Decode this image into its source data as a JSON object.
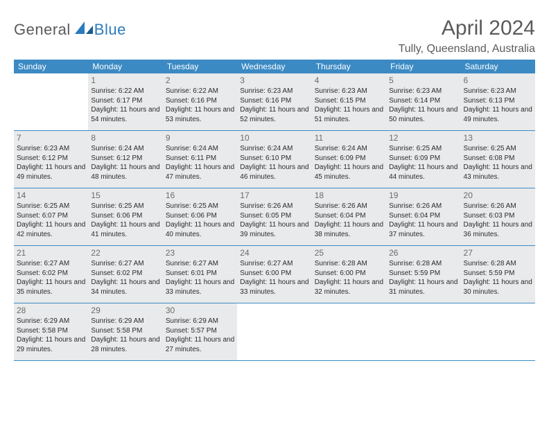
{
  "brand": {
    "part1": "General",
    "part2": "Blue"
  },
  "title": "April 2024",
  "location": "Tully, Queensland, Australia",
  "header_bg": "#3b8ac4",
  "cell_bg": "#e9eaeb",
  "border_color": "#3b8ac4",
  "weekdays": [
    "Sunday",
    "Monday",
    "Tuesday",
    "Wednesday",
    "Thursday",
    "Friday",
    "Saturday"
  ],
  "start_offset": 1,
  "days": [
    {
      "n": 1,
      "sr": "6:22 AM",
      "ss": "6:17 PM",
      "dlh": 11,
      "dlm": 54
    },
    {
      "n": 2,
      "sr": "6:22 AM",
      "ss": "6:16 PM",
      "dlh": 11,
      "dlm": 53
    },
    {
      "n": 3,
      "sr": "6:23 AM",
      "ss": "6:16 PM",
      "dlh": 11,
      "dlm": 52
    },
    {
      "n": 4,
      "sr": "6:23 AM",
      "ss": "6:15 PM",
      "dlh": 11,
      "dlm": 51
    },
    {
      "n": 5,
      "sr": "6:23 AM",
      "ss": "6:14 PM",
      "dlh": 11,
      "dlm": 50
    },
    {
      "n": 6,
      "sr": "6:23 AM",
      "ss": "6:13 PM",
      "dlh": 11,
      "dlm": 49
    },
    {
      "n": 7,
      "sr": "6:23 AM",
      "ss": "6:12 PM",
      "dlh": 11,
      "dlm": 49
    },
    {
      "n": 8,
      "sr": "6:24 AM",
      "ss": "6:12 PM",
      "dlh": 11,
      "dlm": 48
    },
    {
      "n": 9,
      "sr": "6:24 AM",
      "ss": "6:11 PM",
      "dlh": 11,
      "dlm": 47
    },
    {
      "n": 10,
      "sr": "6:24 AM",
      "ss": "6:10 PM",
      "dlh": 11,
      "dlm": 46
    },
    {
      "n": 11,
      "sr": "6:24 AM",
      "ss": "6:09 PM",
      "dlh": 11,
      "dlm": 45
    },
    {
      "n": 12,
      "sr": "6:25 AM",
      "ss": "6:09 PM",
      "dlh": 11,
      "dlm": 44
    },
    {
      "n": 13,
      "sr": "6:25 AM",
      "ss": "6:08 PM",
      "dlh": 11,
      "dlm": 43
    },
    {
      "n": 14,
      "sr": "6:25 AM",
      "ss": "6:07 PM",
      "dlh": 11,
      "dlm": 42
    },
    {
      "n": 15,
      "sr": "6:25 AM",
      "ss": "6:06 PM",
      "dlh": 11,
      "dlm": 41
    },
    {
      "n": 16,
      "sr": "6:25 AM",
      "ss": "6:06 PM",
      "dlh": 11,
      "dlm": 40
    },
    {
      "n": 17,
      "sr": "6:26 AM",
      "ss": "6:05 PM",
      "dlh": 11,
      "dlm": 39
    },
    {
      "n": 18,
      "sr": "6:26 AM",
      "ss": "6:04 PM",
      "dlh": 11,
      "dlm": 38
    },
    {
      "n": 19,
      "sr": "6:26 AM",
      "ss": "6:04 PM",
      "dlh": 11,
      "dlm": 37
    },
    {
      "n": 20,
      "sr": "6:26 AM",
      "ss": "6:03 PM",
      "dlh": 11,
      "dlm": 36
    },
    {
      "n": 21,
      "sr": "6:27 AM",
      "ss": "6:02 PM",
      "dlh": 11,
      "dlm": 35
    },
    {
      "n": 22,
      "sr": "6:27 AM",
      "ss": "6:02 PM",
      "dlh": 11,
      "dlm": 34
    },
    {
      "n": 23,
      "sr": "6:27 AM",
      "ss": "6:01 PM",
      "dlh": 11,
      "dlm": 33
    },
    {
      "n": 24,
      "sr": "6:27 AM",
      "ss": "6:00 PM",
      "dlh": 11,
      "dlm": 33
    },
    {
      "n": 25,
      "sr": "6:28 AM",
      "ss": "6:00 PM",
      "dlh": 11,
      "dlm": 32
    },
    {
      "n": 26,
      "sr": "6:28 AM",
      "ss": "5:59 PM",
      "dlh": 11,
      "dlm": 31
    },
    {
      "n": 27,
      "sr": "6:28 AM",
      "ss": "5:59 PM",
      "dlh": 11,
      "dlm": 30
    },
    {
      "n": 28,
      "sr": "6:29 AM",
      "ss": "5:58 PM",
      "dlh": 11,
      "dlm": 29
    },
    {
      "n": 29,
      "sr": "6:29 AM",
      "ss": "5:58 PM",
      "dlh": 11,
      "dlm": 28
    },
    {
      "n": 30,
      "sr": "6:29 AM",
      "ss": "5:57 PM",
      "dlh": 11,
      "dlm": 27
    }
  ]
}
